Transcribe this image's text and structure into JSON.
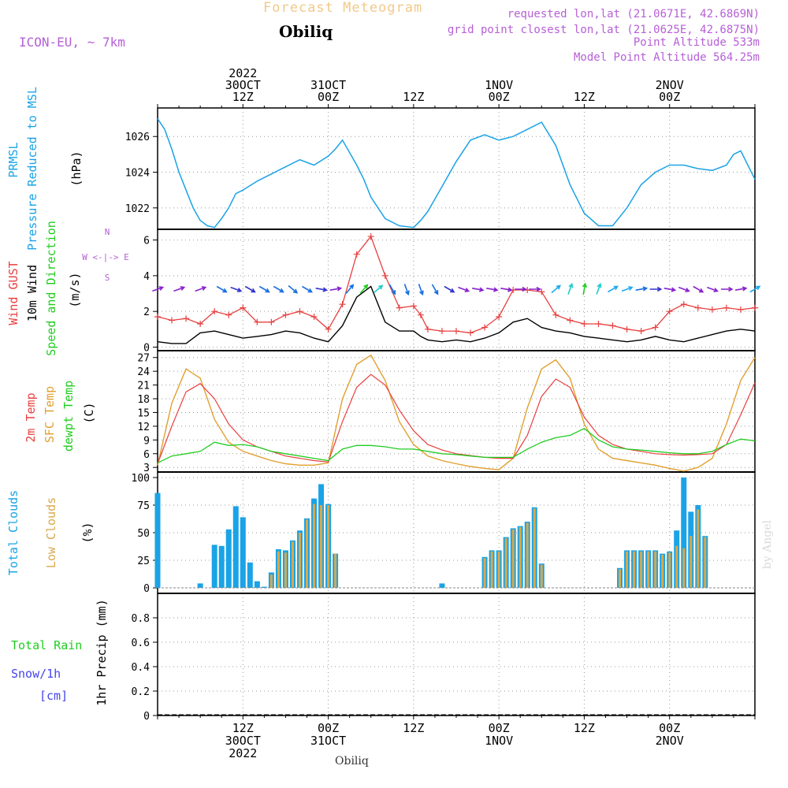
{
  "header": {
    "title": "Forecast Meteogram",
    "station": "Obiliq",
    "model": "ICON-EU, ~ 7km",
    "requested": "requested lon,lat (21.0671E, 42.6869N)",
    "gridpoint": "grid point closest lon,lat (21.0625E, 42.6875N)",
    "point_alt": "Point Altitude 533m",
    "model_alt": "Model Point Altitude 564.25m"
  },
  "credit": "by Angel",
  "footer_station": "Obiliq",
  "time_axis": {
    "top": [
      {
        "h": 12,
        "lines": [
          "2022",
          "30OCT",
          "12Z"
        ]
      },
      {
        "h": 24,
        "lines": [
          "31OCT",
          "00Z"
        ]
      },
      {
        "h": 36,
        "lines": [
          "12Z"
        ]
      },
      {
        "h": 48,
        "lines": [
          "1NOV",
          "00Z"
        ]
      },
      {
        "h": 60,
        "lines": [
          "12Z"
        ]
      },
      {
        "h": 72,
        "lines": [
          "2NOV",
          "00Z"
        ]
      }
    ],
    "bottom": [
      {
        "h": 12,
        "lines": [
          "12Z",
          "30OCT",
          "2022"
        ]
      },
      {
        "h": 24,
        "lines": [
          "00Z",
          "31OCT"
        ]
      },
      {
        "h": 36,
        "lines": [
          "12Z"
        ]
      },
      {
        "h": 48,
        "lines": [
          "00Z",
          "1NOV"
        ]
      },
      {
        "h": 60,
        "lines": [
          "12Z"
        ]
      },
      {
        "h": 72,
        "lines": [
          "00Z",
          "2NOV"
        ]
      }
    ]
  },
  "panel_labels": {
    "pressure": {
      "blue": [
        "PRMSL",
        "Pressure Reduced to MSL"
      ],
      "unit": "(hPa)"
    },
    "wind": {
      "red": "Wind GUST",
      "black": "10m Wind",
      "green": "Speed and Direction",
      "unit": "(m/s)",
      "compass": [
        "N",
        "W <-|-> E",
        "S"
      ]
    },
    "temp": {
      "red": "2m Temp",
      "orange": "SFC Temp",
      "green": "dewpt Temp",
      "unit": "(C)"
    },
    "clouds": {
      "blue": "Total Clouds",
      "orange": "Low Clouds",
      "unit": "(%)"
    },
    "precip": {
      "green": "Total  Rain",
      "blue1": "Snow/1h",
      "blue2": "[cm]",
      "unit": "1hr Precip (mm)"
    }
  },
  "colors": {
    "pressure": "#1aa3e6",
    "gust": "#e84040",
    "wind": "#000000",
    "t2m": "#e84040",
    "sfc": "#e0a030",
    "dewpt": "#22cc22",
    "total_clouds": "#1aa3e6",
    "low_clouds": "#d9a84a",
    "rain": "#22cc22",
    "snow": "#4444ee",
    "arrows": "#8822cc"
  },
  "chart_data": [
    {
      "type": "line",
      "title": "PRMSL Pressure Reduced to MSL",
      "ylabel": "(hPa)",
      "ylim": [
        1020.8,
        1027.6
      ],
      "yticks": [
        1022,
        1024,
        1026
      ],
      "x_hours": [
        0,
        1,
        2,
        3,
        4,
        5,
        6,
        7,
        8,
        9,
        10,
        11,
        12,
        14,
        16,
        18,
        20,
        22,
        24,
        25,
        26,
        28,
        29,
        30,
        32,
        34,
        36,
        37,
        38,
        40,
        42,
        44,
        46,
        48,
        50,
        52,
        54,
        56,
        58,
        60,
        62,
        64,
        66,
        68,
        70,
        72,
        74,
        76,
        78,
        80,
        81,
        82,
        84
      ],
      "series": [
        {
          "name": "PRMSL",
          "values": [
            1027.0,
            1026.4,
            1025.3,
            1024.0,
            1023.0,
            1022.0,
            1021.3,
            1021.0,
            1020.9,
            1021.4,
            1022.0,
            1022.8,
            1023.0,
            1023.5,
            1023.9,
            1024.3,
            1024.7,
            1024.4,
            1024.9,
            1025.3,
            1025.8,
            1024.4,
            1023.6,
            1022.6,
            1021.4,
            1021.0,
            1020.9,
            1021.3,
            1021.8,
            1023.2,
            1024.6,
            1025.8,
            1026.1,
            1025.8,
            1026.0,
            1026.4,
            1026.8,
            1025.5,
            1023.3,
            1021.7,
            1021.0,
            1021.0,
            1022.0,
            1023.3,
            1024.0,
            1024.4,
            1024.4,
            1024.2,
            1024.1,
            1024.4,
            1025.0,
            1025.2,
            1023.6
          ]
        }
      ]
    },
    {
      "type": "line",
      "title": "Wind GUST / 10m Wind Speed and Direction",
      "ylabel": "(m/s)",
      "ylim": [
        -0.2,
        6.6
      ],
      "yticks": [
        0,
        2,
        4,
        6
      ],
      "x_hours": [
        0,
        2,
        4,
        6,
        8,
        10,
        12,
        14,
        16,
        18,
        20,
        22,
        24,
        26,
        28,
        30,
        32,
        34,
        36,
        37,
        38,
        40,
        42,
        44,
        46,
        48,
        50,
        52,
        54,
        56,
        58,
        60,
        62,
        64,
        66,
        68,
        70,
        72,
        74,
        76,
        78,
        80,
        82,
        84
      ],
      "series": [
        {
          "name": "Wind GUST",
          "values": [
            1.7,
            1.5,
            1.6,
            1.3,
            2.0,
            1.8,
            2.2,
            1.4,
            1.4,
            1.8,
            2.0,
            1.7,
            1.0,
            2.4,
            5.2,
            6.2,
            4.0,
            2.2,
            2.3,
            1.8,
            1.0,
            0.9,
            0.9,
            0.8,
            1.1,
            1.7,
            3.2,
            3.2,
            3.1,
            1.8,
            1.5,
            1.3,
            1.3,
            1.2,
            1.0,
            0.9,
            1.1,
            2.0,
            2.4,
            2.2,
            2.1,
            2.2,
            2.1,
            2.2
          ]
        },
        {
          "name": "10m Wind",
          "values": [
            0.3,
            0.2,
            0.2,
            0.8,
            0.9,
            0.7,
            0.5,
            0.6,
            0.7,
            0.9,
            0.8,
            0.5,
            0.3,
            1.2,
            2.8,
            3.4,
            1.4,
            0.9,
            0.9,
            0.6,
            0.4,
            0.3,
            0.4,
            0.3,
            0.5,
            0.8,
            1.4,
            1.6,
            1.1,
            0.9,
            0.8,
            0.6,
            0.5,
            0.4,
            0.3,
            0.4,
            0.6,
            0.4,
            0.3,
            0.5,
            0.7,
            0.9,
            1.0,
            0.9
          ]
        }
      ]
    },
    {
      "type": "line",
      "title": "2m Temp / SFC Temp / dewpt Temp",
      "ylabel": "(C)",
      "ylim": [
        2.0,
        28.5
      ],
      "yticks": [
        3,
        6,
        9,
        12,
        15,
        18,
        21,
        24,
        27
      ],
      "x_hours": [
        0,
        2,
        4,
        6,
        8,
        10,
        12,
        14,
        16,
        18,
        20,
        22,
        24,
        26,
        28,
        30,
        32,
        34,
        36,
        38,
        40,
        42,
        44,
        46,
        48,
        50,
        52,
        54,
        56,
        58,
        60,
        62,
        64,
        66,
        68,
        70,
        72,
        74,
        76,
        78,
        80,
        82,
        84
      ],
      "series": [
        {
          "name": "2m Temp",
          "values": [
            3.8,
            12.0,
            19.5,
            21.3,
            18.0,
            12.5,
            9.0,
            7.5,
            6.5,
            5.5,
            5.0,
            4.5,
            4.2,
            13.0,
            20.5,
            23.3,
            21.0,
            15.5,
            11.0,
            8.0,
            6.8,
            6.0,
            5.6,
            5.2,
            5.0,
            5.0,
            10.0,
            18.5,
            22.3,
            20.5,
            14.0,
            10.0,
            8.0,
            7.0,
            6.5,
            6.0,
            5.8,
            5.7,
            5.8,
            6.0,
            8.0,
            14.5,
            21.5
          ]
        },
        {
          "name": "SFC Temp",
          "values": [
            3.5,
            17.0,
            24.5,
            22.5,
            13.5,
            8.5,
            6.5,
            5.5,
            4.5,
            3.8,
            3.5,
            3.5,
            4.0,
            18.0,
            25.5,
            27.5,
            22.0,
            13.0,
            8.0,
            5.5,
            4.5,
            3.8,
            3.2,
            2.8,
            2.5,
            5.0,
            16.0,
            24.5,
            26.5,
            22.5,
            12.5,
            7.0,
            5.0,
            4.5,
            4.0,
            3.5,
            2.8,
            2.2,
            3.0,
            5.0,
            12.5,
            22.0,
            27.0
          ]
        },
        {
          "name": "dewpt Temp",
          "values": [
            4.0,
            5.5,
            6.0,
            6.5,
            8.5,
            7.8,
            8.0,
            7.5,
            6.5,
            6.0,
            5.5,
            5.0,
            4.5,
            7.0,
            7.8,
            7.8,
            7.5,
            7.0,
            7.0,
            6.5,
            6.0,
            5.8,
            5.5,
            5.2,
            5.2,
            5.2,
            7.0,
            8.5,
            9.5,
            10.0,
            11.5,
            9.0,
            7.5,
            7.0,
            6.8,
            6.5,
            6.2,
            6.0,
            6.0,
            6.5,
            8.0,
            9.2,
            8.8
          ]
        }
      ]
    },
    {
      "type": "bar",
      "title": "Total Clouds / Low Clouds",
      "ylabel": "(%)",
      "ylim": [
        -5,
        105
      ],
      "yticks": [
        0,
        25,
        50,
        75,
        100
      ],
      "x_hours": [
        0,
        1,
        2,
        3,
        4,
        5,
        6,
        7,
        8,
        9,
        10,
        11,
        12,
        13,
        14,
        15,
        16,
        17,
        18,
        19,
        20,
        21,
        22,
        23,
        24,
        25,
        26,
        27,
        28,
        29,
        30,
        31,
        32,
        33,
        34,
        35,
        36,
        37,
        38,
        39,
        40,
        41,
        42,
        43,
        44,
        45,
        46,
        47,
        48,
        49,
        50,
        51,
        52,
        53,
        54,
        55,
        56,
        57,
        58,
        59,
        60,
        61,
        62,
        63,
        64,
        65,
        66,
        67,
        68,
        69,
        70,
        71,
        72,
        73,
        74,
        75,
        76,
        77,
        78,
        79,
        80,
        81,
        82,
        83,
        84
      ],
      "series": [
        {
          "name": "Total Clouds",
          "values": [
            86,
            0,
            0,
            0,
            0,
            0,
            4,
            0,
            39,
            38,
            53,
            74,
            64,
            23,
            6,
            1,
            14,
            35,
            34,
            43,
            52,
            63,
            81,
            94,
            76,
            31,
            0,
            0,
            0,
            0,
            0,
            0,
            0,
            0,
            0,
            0,
            0,
            0,
            0,
            0,
            4,
            0,
            0,
            0,
            0,
            0,
            28,
            34,
            34,
            46,
            54,
            56,
            60,
            73,
            22,
            0,
            0,
            0,
            0,
            0,
            0,
            0,
            0,
            0,
            0,
            18,
            34,
            34,
            34,
            34,
            34,
            31,
            33,
            52,
            100,
            69,
            75,
            47,
            0,
            0,
            0,
            0,
            0,
            0,
            0
          ]
        },
        {
          "name": "Low Clouds",
          "values": [
            0,
            0,
            0,
            0,
            0,
            0,
            0,
            0,
            0,
            0,
            0,
            0,
            0,
            0,
            0,
            0,
            12,
            33,
            32,
            42,
            50,
            62,
            76,
            75,
            75,
            31,
            0,
            0,
            0,
            0,
            0,
            0,
            0,
            0,
            0,
            0,
            0,
            0,
            0,
            0,
            0,
            0,
            0,
            0,
            0,
            0,
            27,
            33,
            33,
            45,
            53,
            55,
            59,
            72,
            21,
            0,
            0,
            0,
            0,
            0,
            0,
            0,
            0,
            0,
            0,
            17,
            33,
            33,
            33,
            33,
            33,
            30,
            32,
            38,
            36,
            47,
            71,
            46,
            0,
            0,
            0,
            0,
            0,
            0,
            0
          ]
        }
      ]
    },
    {
      "type": "bar",
      "title": "Total Rain / Snow 1h",
      "ylabel": "1hr Precip (mm)",
      "ylim": [
        0,
        1.0
      ],
      "yticks": [
        0,
        0.2,
        0.4,
        0.6,
        0.8
      ],
      "ytick_labels": [
        "0",
        "0.2",
        "0.4",
        "0.6",
        "0.8"
      ],
      "series": [
        {
          "name": "Total Rain",
          "values": []
        },
        {
          "name": "Snow/1h",
          "values": []
        }
      ]
    }
  ],
  "wind_arrows": [
    {
      "h": 0,
      "dir": 250,
      "color": "#8822cc"
    },
    {
      "h": 3,
      "dir": 250,
      "color": "#8822cc"
    },
    {
      "h": 6,
      "dir": 250,
      "color": "#8822cc"
    },
    {
      "h": 9,
      "dir": 300,
      "color": "#1a6fe0"
    },
    {
      "h": 11,
      "dir": 290,
      "color": "#3333cc"
    },
    {
      "h": 13,
      "dir": 300,
      "color": "#3333cc"
    },
    {
      "h": 15,
      "dir": 300,
      "color": "#1a6fe0"
    },
    {
      "h": 17,
      "dir": 300,
      "color": "#1a6fe0"
    },
    {
      "h": 19,
      "dir": 310,
      "color": "#1a6fe0"
    },
    {
      "h": 21,
      "dir": 300,
      "color": "#1a6fe0"
    },
    {
      "h": 23,
      "dir": 280,
      "color": "#3333cc"
    },
    {
      "h": 25,
      "dir": 260,
      "color": "#8822cc"
    },
    {
      "h": 27,
      "dir": 220,
      "color": "#1a6fe0"
    },
    {
      "h": 29,
      "dir": 220,
      "color": "#22cc22"
    },
    {
      "h": 31,
      "dir": 230,
      "color": "#22cccc"
    },
    {
      "h": 33,
      "dir": 330,
      "color": "#1a6fe0"
    },
    {
      "h": 35,
      "dir": 340,
      "color": "#1a6fe0"
    },
    {
      "h": 37,
      "dir": 340,
      "color": "#1a6fe0"
    },
    {
      "h": 39,
      "dir": 330,
      "color": "#1a6fe0"
    },
    {
      "h": 41,
      "dir": 300,
      "color": "#3333cc"
    },
    {
      "h": 43,
      "dir": 290,
      "color": "#8822cc"
    },
    {
      "h": 45,
      "dir": 280,
      "color": "#8822cc"
    },
    {
      "h": 47,
      "dir": 280,
      "color": "#8822cc"
    },
    {
      "h": 49,
      "dir": 280,
      "color": "#8822cc"
    },
    {
      "h": 51,
      "dir": 270,
      "color": "#8822cc"
    },
    {
      "h": 53,
      "dir": 270,
      "color": "#8822cc"
    },
    {
      "h": 56,
      "dir": 230,
      "color": "#22aaee"
    },
    {
      "h": 58,
      "dir": 200,
      "color": "#22cccc"
    },
    {
      "h": 60,
      "dir": 190,
      "color": "#22cc22"
    },
    {
      "h": 62,
      "dir": 200,
      "color": "#22cccc"
    },
    {
      "h": 64,
      "dir": 240,
      "color": "#22aaee"
    },
    {
      "h": 66,
      "dir": 250,
      "color": "#22aaee"
    },
    {
      "h": 68,
      "dir": 260,
      "color": "#1a6fe0"
    },
    {
      "h": 70,
      "dir": 270,
      "color": "#3333cc"
    },
    {
      "h": 72,
      "dir": 280,
      "color": "#8822cc"
    },
    {
      "h": 74,
      "dir": 290,
      "color": "#8822cc"
    },
    {
      "h": 76,
      "dir": 300,
      "color": "#8822cc"
    },
    {
      "h": 78,
      "dir": 290,
      "color": "#8822cc"
    },
    {
      "h": 80,
      "dir": 270,
      "color": "#8822cc"
    },
    {
      "h": 82,
      "dir": 260,
      "color": "#8822cc"
    },
    {
      "h": 84,
      "dir": 240,
      "color": "#22aaee"
    }
  ]
}
